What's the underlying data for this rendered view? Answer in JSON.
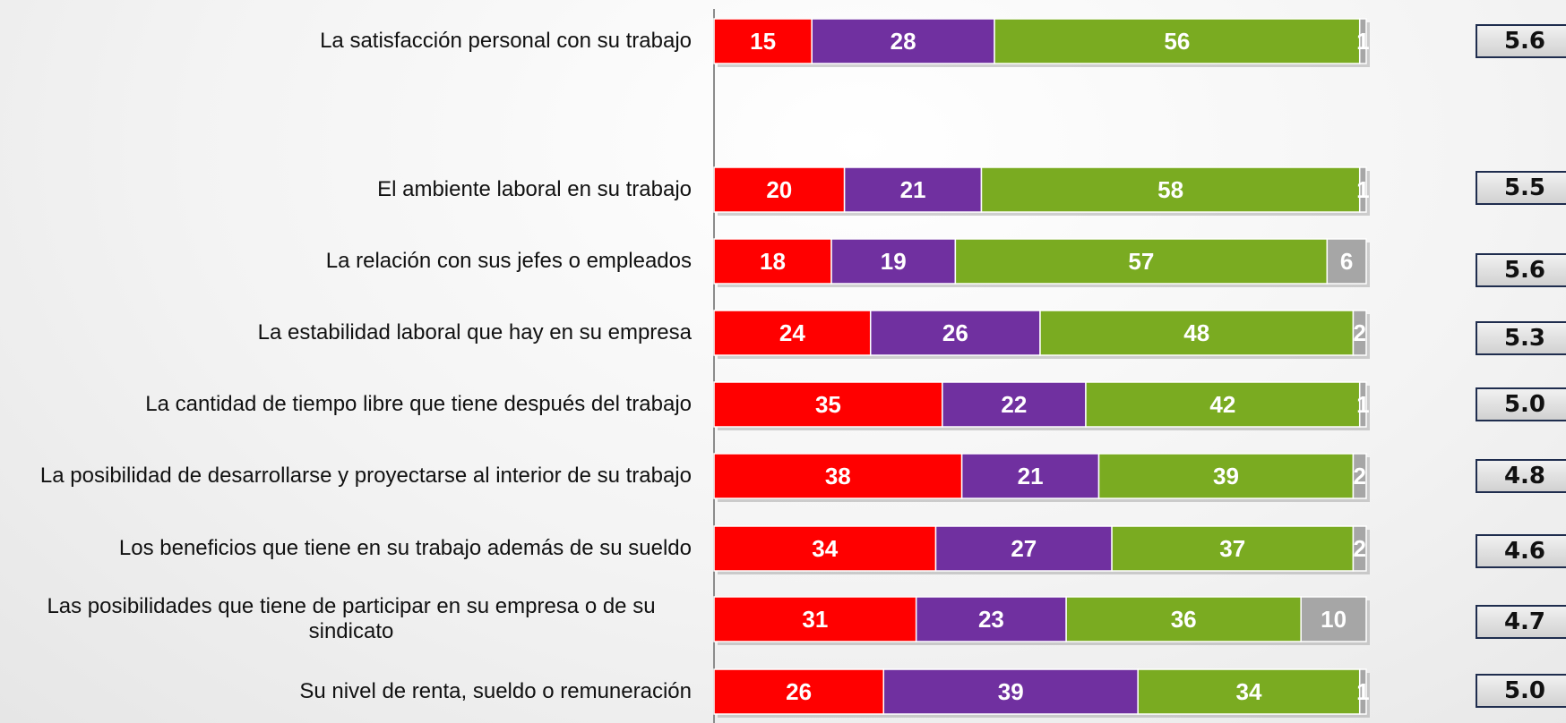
{
  "chart_data": {
    "type": "stacked-bar-horizontal",
    "categories": [
      "La satisfacción personal con su trabajo",
      "El ambiente laboral en su trabajo",
      "La relación con sus jefes o empleados",
      "La estabilidad laboral que hay en su empresa",
      "La cantidad de tiempo libre que tiene después del trabajo",
      "La posibilidad de desarrollarse y proyectarse al interior de su trabajo",
      "Los beneficios que tiene en su trabajo además de su sueldo",
      "Las posibilidades que tiene de participar en su empresa o de su sindicato",
      "Su nivel de renta, sueldo o remuneración"
    ],
    "series": [
      {
        "color": "#ff0000",
        "values": [
          15,
          20,
          18,
          24,
          35,
          38,
          34,
          31,
          26
        ]
      },
      {
        "color": "#7030a0",
        "values": [
          28,
          21,
          19,
          26,
          22,
          21,
          27,
          23,
          39
        ]
      },
      {
        "color": "#7aab21",
        "values": [
          56,
          58,
          57,
          48,
          42,
          39,
          37,
          36,
          34
        ]
      },
      {
        "color": "#a6a6a6",
        "values": [
          1,
          1,
          6,
          2,
          1,
          2,
          2,
          10,
          1
        ]
      }
    ],
    "xlim": [
      0,
      100
    ],
    "mean_scores": [
      5.6,
      5.5,
      5.6,
      5.3,
      5.0,
      4.8,
      4.6,
      4.7,
      5.0
    ],
    "mean_score_labels": [
      "5.6",
      "5.5",
      "5.6",
      "5.3",
      "5.0",
      "4.8",
      "4.6",
      "4.7",
      "5.0"
    ]
  }
}
